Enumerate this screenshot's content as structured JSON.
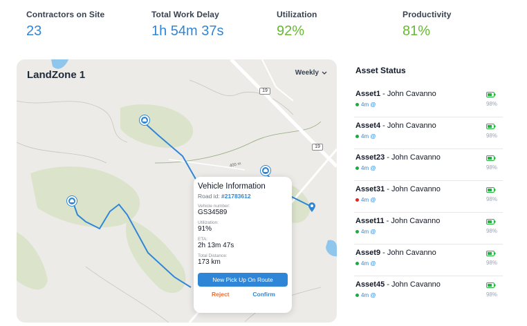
{
  "kpis": [
    {
      "label": "Contractors on Site",
      "value": "23",
      "color": "#2f86d6"
    },
    {
      "label": "Total Work Delay",
      "value": "1h 54m 37s",
      "color": "#2f86d6"
    },
    {
      "label": "Utilization",
      "value": "92%",
      "color": "#67b733"
    },
    {
      "label": "Productivity",
      "value": "81%",
      "color": "#67b733"
    }
  ],
  "map": {
    "title": "LandZone 1",
    "period": "Weekly",
    "route_badges": [
      "19",
      "19"
    ],
    "road_label": "400 m"
  },
  "popup": {
    "title": "Vehicle Information",
    "road_prefix": "Road id:",
    "road_id": "#21783612",
    "vehicle_number_label": "Vehicle number:",
    "vehicle_number": "GS34589",
    "utilization_label": "Utilization:",
    "utilization": "91%",
    "eta_label": "ETA:",
    "eta": "2h 13m 47s",
    "distance_label": "Total Distance:",
    "distance": "173 km",
    "primary_button": "New Pick Up On Route",
    "reject": "Reject",
    "confirm": "Confirm"
  },
  "asset_status": {
    "title": "Asset Status",
    "items": [
      {
        "id": "Asset1",
        "owner": " - John Cavanno",
        "time": "4m @",
        "status": "#22a745",
        "battery": "98%"
      },
      {
        "id": "Asset4",
        "owner": " - John Cavanno",
        "time": "4m @",
        "status": "#22a745",
        "battery": "98%"
      },
      {
        "id": "Asset23",
        "owner": " - John Cavanno",
        "time": "4m @",
        "status": "#22a745",
        "battery": "98%"
      },
      {
        "id": "Asset31",
        "owner": " - John Cavanno",
        "time": "4m @",
        "status": "#e02424",
        "battery": "98%"
      },
      {
        "id": "Asset11",
        "owner": " - John Cavanno",
        "time": "4m @",
        "status": "#22a745",
        "battery": "98%"
      },
      {
        "id": "Asset9",
        "owner": " - John Cavanno",
        "time": "4m @",
        "status": "#22a745",
        "battery": "98%"
      },
      {
        "id": "Asset45",
        "owner": " - John Cavanno",
        "time": "4m @",
        "status": "#22a745",
        "battery": "98%"
      }
    ]
  },
  "colors": {
    "accent": "#2f86d6",
    "positive": "#67b733",
    "reject": "#f26b2e",
    "battery": "#22b33f"
  }
}
